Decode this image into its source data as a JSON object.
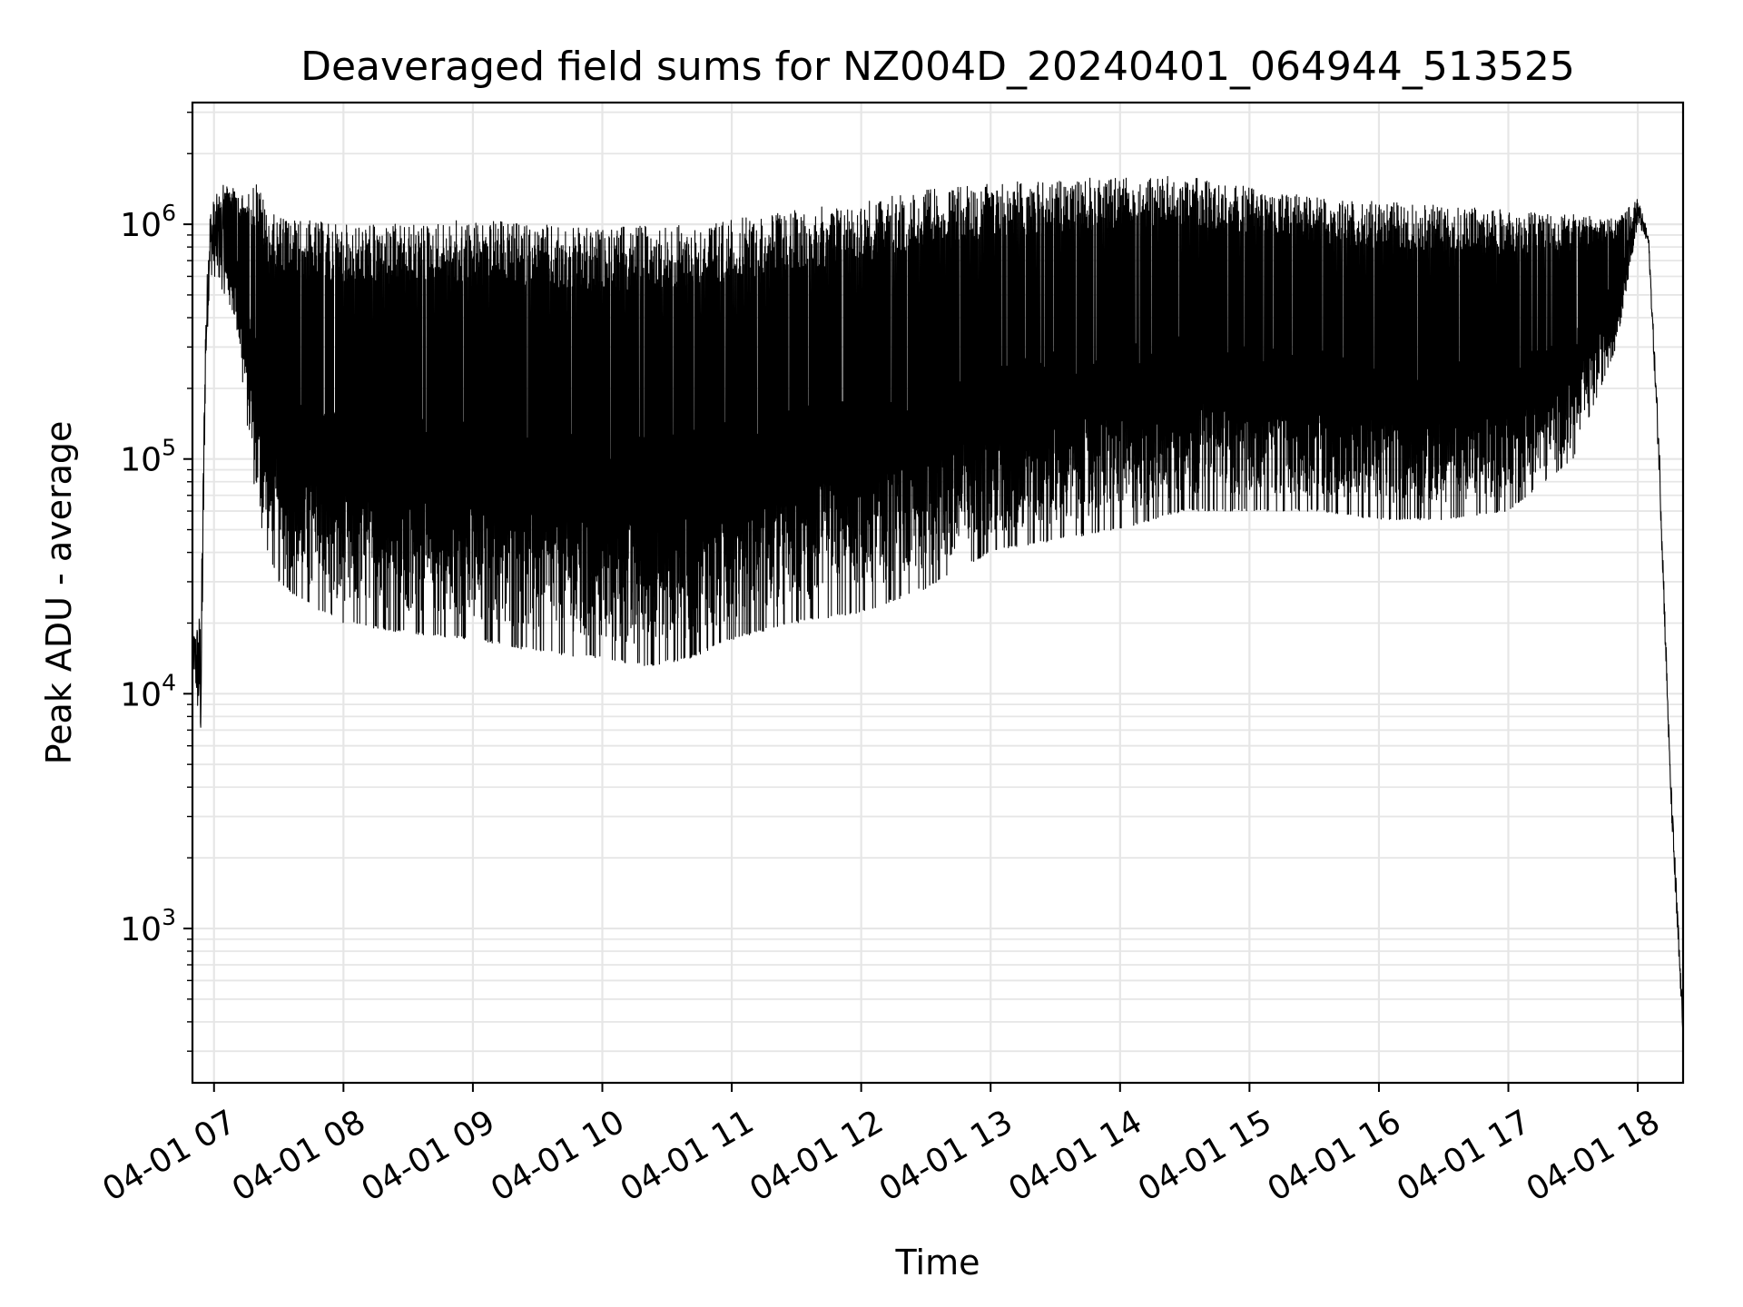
{
  "chart_data": {
    "type": "line",
    "title": "Deaveraged field sums for NZ004D_20240401_064944_513525",
    "xlabel": "Time",
    "ylabel": "Peak ADU - average",
    "yscale": "log",
    "ylim": [
      220,
      3300000
    ],
    "xlim": [
      "2024-04-01 06:50",
      "2024-04-01 18:21"
    ],
    "x_tick_labels": [
      "04-01 07",
      "04-01 08",
      "04-01 09",
      "04-01 10",
      "04-01 11",
      "04-01 12",
      "04-01 13",
      "04-01 14",
      "04-01 15",
      "04-01 16",
      "04-01 17",
      "04-01 18"
    ],
    "x_tick_times": [
      "2024-04-01 07:00",
      "2024-04-01 08:00",
      "2024-04-01 09:00",
      "2024-04-01 10:00",
      "2024-04-01 11:00",
      "2024-04-01 12:00",
      "2024-04-01 13:00",
      "2024-04-01 14:00",
      "2024-04-01 15:00",
      "2024-04-01 16:00",
      "2024-04-01 17:00",
      "2024-04-01 18:00"
    ],
    "y_ticks": [
      {
        "value": 1000,
        "base": "10",
        "exp": "3"
      },
      {
        "value": 10000,
        "base": "10",
        "exp": "4"
      },
      {
        "value": 100000,
        "base": "10",
        "exp": "5"
      },
      {
        "value": 1000000,
        "base": "10",
        "exp": "6"
      }
    ],
    "grid": true,
    "legend": "none",
    "line_color": "#000000",
    "grid_color": "#e6e6e6",
    "series": [
      {
        "x": [
          "2024-04-01 06:50",
          "2024-04-01 06:54",
          "2024-04-01 06:56",
          "2024-04-01 06:58",
          "2024-04-01 07:00",
          "2024-04-01 07:05",
          "2024-04-01 07:10",
          "2024-04-01 07:15",
          "2024-04-01 07:20",
          "2024-04-01 07:25",
          "2024-04-01 07:30",
          "2024-04-01 07:40",
          "2024-04-01 08:00",
          "2024-04-01 08:30",
          "2024-04-01 09:00",
          "2024-04-01 09:30",
          "2024-04-01 10:00",
          "2024-04-01 10:20",
          "2024-04-01 10:40",
          "2024-04-01 11:00",
          "2024-04-01 11:30",
          "2024-04-01 12:00",
          "2024-04-01 12:30",
          "2024-04-01 13:00",
          "2024-04-01 13:30",
          "2024-04-01 14:00",
          "2024-04-01 14:30",
          "2024-04-01 15:00",
          "2024-04-01 15:30",
          "2024-04-01 16:00",
          "2024-04-01 16:30",
          "2024-04-01 17:00",
          "2024-04-01 17:30",
          "2024-04-01 17:50",
          "2024-04-01 18:00",
          "2024-04-01 18:05",
          "2024-04-01 18:10",
          "2024-04-01 18:15",
          "2024-04-01 18:18",
          "2024-04-01 18:21"
        ],
        "max": [
          17000,
          25000,
          400000,
          1200000,
          1300000,
          1500000,
          1400000,
          1300000,
          1600000,
          1100000,
          1100000,
          1050000,
          1000000,
          1000000,
          1050000,
          1000000,
          950000,
          1000000,
          1000000,
          1050000,
          1150000,
          1250000,
          1400000,
          1500000,
          1550000,
          1600000,
          1600000,
          1450000,
          1300000,
          1250000,
          1200000,
          1150000,
          1100000,
          1050000,
          1300000,
          900000,
          120000,
          5000,
          1500,
          400
        ],
        "min": [
          14000,
          5500,
          200000,
          600000,
          600000,
          500000,
          400000,
          150000,
          60000,
          40000,
          30000,
          25000,
          20000,
          18000,
          17000,
          15000,
          14000,
          13000,
          14000,
          17000,
          20000,
          22000,
          28000,
          40000,
          45000,
          50000,
          60000,
          60000,
          60000,
          55000,
          55000,
          60000,
          100000,
          300000,
          1000000,
          800000,
          80000,
          4000,
          1000,
          350
        ]
      }
    ]
  }
}
